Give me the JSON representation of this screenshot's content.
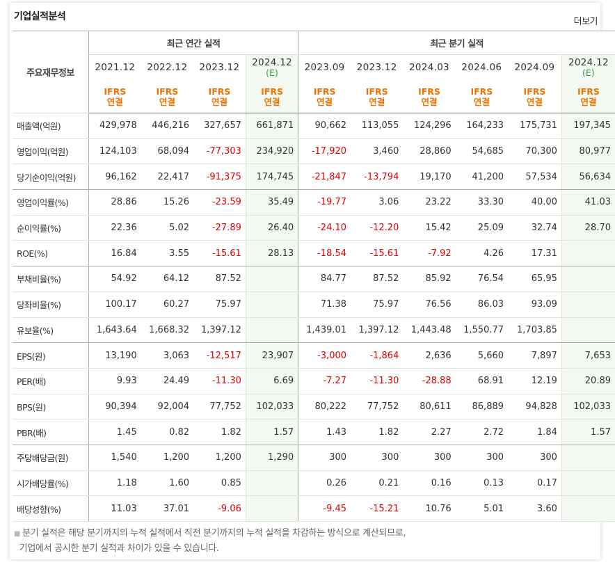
{
  "title": "기업실적분석",
  "more_label": "더보기",
  "table": {
    "row_header": "주요재무정보",
    "annual_group": "최근 연간 실적",
    "quarter_group": "최근 분기 실적",
    "periods": [
      {
        "label": "2021.12",
        "est": ""
      },
      {
        "label": "2022.12",
        "est": ""
      },
      {
        "label": "2023.12",
        "est": ""
      },
      {
        "label": "2024.12",
        "est": "(E)"
      },
      {
        "label": "2023.09",
        "est": ""
      },
      {
        "label": "2023.12",
        "est": ""
      },
      {
        "label": "2024.03",
        "est": ""
      },
      {
        "label": "2024.06",
        "est": ""
      },
      {
        "label": "2024.09",
        "est": ""
      },
      {
        "label": "2024.12",
        "est": "(E)"
      }
    ],
    "gaap_line1": "IFRS",
    "gaap_line2": "연결",
    "rows": [
      {
        "label": "매출액(억원)",
        "values": [
          "429,978",
          "446,216",
          "327,657",
          "661,871",
          "90,662",
          "113,055",
          "124,296",
          "164,233",
          "175,731",
          "197,345"
        ]
      },
      {
        "label": "영업이익(억원)",
        "values": [
          "124,103",
          "68,094",
          "-77,303",
          "234,920",
          "-17,920",
          "3,460",
          "28,860",
          "54,685",
          "70,300",
          "80,977"
        ]
      },
      {
        "label": "당기순이익(억원)",
        "values": [
          "96,162",
          "22,417",
          "-91,375",
          "174,745",
          "-21,847",
          "-13,794",
          "19,170",
          "41,200",
          "57,534",
          "56,634"
        ]
      },
      {
        "label": "영업이익률(%)",
        "values": [
          "28.86",
          "15.26",
          "-23.59",
          "35.49",
          "-19.77",
          "3.06",
          "23.22",
          "33.30",
          "40.00",
          "41.03"
        ]
      },
      {
        "label": "순이익률(%)",
        "values": [
          "22.36",
          "5.02",
          "-27.89",
          "26.40",
          "-24.10",
          "-12.20",
          "15.42",
          "25.09",
          "32.74",
          "28.70"
        ]
      },
      {
        "label": "ROE(%)",
        "values": [
          "16.84",
          "3.55",
          "-15.61",
          "28.13",
          "-18.54",
          "-15.61",
          "-7.92",
          "4.26",
          "17.31",
          ""
        ]
      },
      {
        "label": "부채비율(%)",
        "values": [
          "54.92",
          "64.12",
          "87.52",
          "",
          "84.77",
          "87.52",
          "85.92",
          "76.54",
          "65.95",
          ""
        ]
      },
      {
        "label": "당좌비율(%)",
        "values": [
          "100.17",
          "60.27",
          "75.97",
          "",
          "71.38",
          "75.97",
          "76.56",
          "86.03",
          "93.09",
          ""
        ]
      },
      {
        "label": "유보율(%)",
        "values": [
          "1,643.64",
          "1,668.32",
          "1,397.12",
          "",
          "1,439.01",
          "1,397.12",
          "1,443.48",
          "1,550.77",
          "1,703.85",
          ""
        ]
      },
      {
        "label": "EPS(원)",
        "values": [
          "13,190",
          "3,063",
          "-12,517",
          "23,907",
          "-3,000",
          "-1,864",
          "2,636",
          "5,660",
          "7,897",
          "7,653"
        ]
      },
      {
        "label": "PER(배)",
        "values": [
          "9.93",
          "24.49",
          "-11.30",
          "6.69",
          "-7.27",
          "-11.30",
          "-28.88",
          "68.91",
          "12.19",
          "20.89"
        ]
      },
      {
        "label": "BPS(원)",
        "values": [
          "90,394",
          "92,004",
          "77,752",
          "102,033",
          "80,222",
          "77,752",
          "80,611",
          "86,889",
          "94,828",
          "102,033"
        ]
      },
      {
        "label": "PBR(배)",
        "values": [
          "1.45",
          "0.82",
          "1.82",
          "1.57",
          "1.43",
          "1.82",
          "2.27",
          "2.72",
          "1.84",
          "1.57"
        ]
      },
      {
        "label": "주당배당금(원)",
        "values": [
          "1,540",
          "1,200",
          "1,200",
          "1,290",
          "300",
          "300",
          "300",
          "300",
          "300",
          ""
        ]
      },
      {
        "label": "시가배당률(%)",
        "values": [
          "1.18",
          "1.60",
          "0.85",
          "",
          "0.26",
          "0.21",
          "0.16",
          "0.13",
          "0.17",
          ""
        ]
      },
      {
        "label": "배당성향(%)",
        "values": [
          "11.03",
          "37.01",
          "-9.06",
          "",
          "-9.45",
          "-15.21",
          "10.76",
          "5.01",
          "3.60",
          ""
        ]
      }
    ]
  },
  "notes": [
    "분기 실적은 해당 분기까지의 누적 실적에서 직전 분기까지의 누적 실적을 차감하는 방식으로 계산되므로,",
    "기업에서 공시한 분기 실적과 차이가 있을 수 있습니다."
  ]
}
